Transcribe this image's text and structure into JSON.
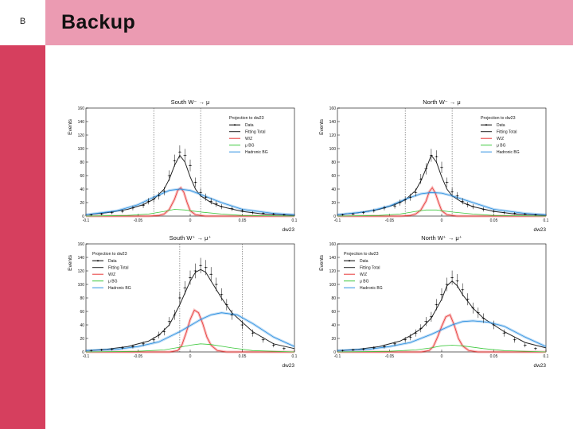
{
  "slide": {
    "letter": "B",
    "title": "Backup"
  },
  "colors": {
    "sidebar": "#d63f5e",
    "header": "#eb9bb2",
    "data": "#000000",
    "fitting_total": "#222222",
    "wz": "#e83838",
    "mu_bg": "#3cc83c",
    "hadronic_bg": "#2b8fe0"
  },
  "chart_data": [
    {
      "type": "line",
      "title": "South W⁻ → μ",
      "xlabel": "dw23",
      "ylabel": "Events",
      "xlim": [
        -0.1,
        0.1
      ],
      "ylim": [
        0,
        160
      ],
      "xticks": [
        "-0.1",
        "-0.05",
        "0",
        "0.05",
        "0.1"
      ],
      "yticks": [
        "0",
        "20",
        "40",
        "60",
        "80",
        "100",
        "120",
        "140",
        "160"
      ],
      "cut_lines": [
        -0.035,
        0.01
      ],
      "legend": {
        "position": "top-right",
        "title": "Projection to dw23",
        "entries": [
          "Data",
          "Fitting Total",
          "W/Z",
          "μ BG",
          "Hadronic BG"
        ]
      },
      "series": [
        {
          "name": "Data",
          "x": [
            -0.095,
            -0.085,
            -0.075,
            -0.065,
            -0.055,
            -0.045,
            -0.04,
            -0.035,
            -0.03,
            -0.025,
            -0.02,
            -0.015,
            -0.01,
            -0.005,
            0,
            0.005,
            0.01,
            0.015,
            0.02,
            0.025,
            0.03,
            0.04,
            0.05,
            0.06,
            0.07,
            0.08,
            0.09
          ],
          "y": [
            2,
            3,
            5,
            7,
            12,
            16,
            22,
            25,
            30,
            37,
            60,
            82,
            95,
            90,
            75,
            50,
            35,
            28,
            22,
            18,
            14,
            11,
            8,
            5,
            4,
            3,
            2
          ]
        },
        {
          "name": "Fitting Total",
          "x": [
            -0.1,
            -0.08,
            -0.06,
            -0.045,
            -0.035,
            -0.025,
            -0.02,
            -0.015,
            -0.01,
            -0.005,
            0,
            0.005,
            0.01,
            0.02,
            0.03,
            0.05,
            0.07,
            0.1
          ],
          "y": [
            2,
            5,
            10,
            17,
            25,
            40,
            55,
            75,
            90,
            80,
            58,
            40,
            30,
            20,
            14,
            7,
            3,
            1
          ]
        },
        {
          "name": "W/Z",
          "x": [
            -0.1,
            -0.04,
            -0.03,
            -0.025,
            -0.02,
            -0.015,
            -0.012,
            -0.009,
            -0.006,
            -0.003,
            0,
            0.005,
            0.015,
            0.1
          ],
          "y": [
            0,
            0,
            1,
            3,
            10,
            25,
            38,
            42,
            35,
            20,
            8,
            2,
            0,
            0
          ]
        },
        {
          "name": "μ BG",
          "x": [
            -0.1,
            -0.06,
            -0.04,
            -0.025,
            -0.015,
            -0.005,
            0.01,
            0.03,
            0.05,
            0.1
          ],
          "y": [
            0,
            1,
            3,
            7,
            10,
            9,
            6,
            3,
            1,
            0
          ]
        },
        {
          "name": "Hadronic BG",
          "x": [
            -0.1,
            -0.07,
            -0.05,
            -0.035,
            -0.02,
            -0.01,
            0,
            0.01,
            0.03,
            0.05,
            0.08,
            0.1
          ],
          "y": [
            2,
            8,
            17,
            28,
            38,
            40,
            38,
            32,
            20,
            10,
            4,
            2
          ]
        }
      ]
    },
    {
      "type": "line",
      "title": "North W⁻ → μ",
      "xlabel": "dw23",
      "ylabel": "Events",
      "xlim": [
        -0.1,
        0.1
      ],
      "ylim": [
        0,
        160
      ],
      "xticks": [
        "-0.1",
        "-0.05",
        "0",
        "0.05",
        "0.1"
      ],
      "yticks": [
        "0",
        "20",
        "40",
        "60",
        "80",
        "100",
        "120",
        "140",
        "160"
      ],
      "cut_lines": [
        -0.035,
        0.01
      ],
      "legend": {
        "position": "top-right",
        "title": "Projection to dw23",
        "entries": [
          "Data",
          "Fitting Total",
          "W/Z",
          "μ BG",
          "Hadronic BG"
        ]
      },
      "series": [
        {
          "name": "Data",
          "x": [
            -0.095,
            -0.085,
            -0.075,
            -0.065,
            -0.055,
            -0.045,
            -0.04,
            -0.035,
            -0.03,
            -0.025,
            -0.02,
            -0.015,
            -0.01,
            -0.005,
            0,
            0.005,
            0.01,
            0.015,
            0.02,
            0.025,
            0.03,
            0.04,
            0.05,
            0.06,
            0.07,
            0.08,
            0.09
          ],
          "y": [
            2,
            3,
            5,
            8,
            12,
            15,
            20,
            24,
            28,
            35,
            55,
            70,
            90,
            88,
            72,
            50,
            36,
            30,
            22,
            17,
            14,
            10,
            7,
            5,
            4,
            3,
            2
          ]
        },
        {
          "name": "Fitting Total",
          "x": [
            -0.1,
            -0.08,
            -0.06,
            -0.045,
            -0.035,
            -0.025,
            -0.02,
            -0.015,
            -0.01,
            -0.005,
            0,
            0.005,
            0.01,
            0.02,
            0.03,
            0.05,
            0.07,
            0.1
          ],
          "y": [
            2,
            5,
            10,
            17,
            24,
            38,
            52,
            70,
            90,
            80,
            58,
            40,
            30,
            20,
            14,
            7,
            3,
            1
          ]
        },
        {
          "name": "W/Z",
          "x": [
            -0.1,
            -0.04,
            -0.03,
            -0.025,
            -0.02,
            -0.015,
            -0.012,
            -0.009,
            -0.006,
            -0.003,
            0,
            0.005,
            0.015,
            0.1
          ],
          "y": [
            0,
            0,
            1,
            3,
            9,
            22,
            36,
            42,
            34,
            20,
            8,
            2,
            0,
            0
          ]
        },
        {
          "name": "μ BG",
          "x": [
            -0.1,
            -0.06,
            -0.04,
            -0.025,
            -0.015,
            -0.005,
            0.01,
            0.03,
            0.05,
            0.1
          ],
          "y": [
            0,
            1,
            3,
            7,
            9,
            9,
            6,
            3,
            1,
            0
          ]
        },
        {
          "name": "Hadronic BG",
          "x": [
            -0.1,
            -0.07,
            -0.05,
            -0.035,
            -0.02,
            -0.01,
            0,
            0.01,
            0.03,
            0.05,
            0.08,
            0.1
          ],
          "y": [
            2,
            7,
            15,
            25,
            33,
            35,
            34,
            30,
            20,
            10,
            4,
            2
          ]
        }
      ]
    },
    {
      "type": "line",
      "title": "South W⁺ → μ⁺",
      "xlabel": "dw23",
      "ylabel": "Events",
      "xlim": [
        -0.1,
        0.1
      ],
      "ylim": [
        0,
        160
      ],
      "xticks": [
        "-0.1",
        "-0.05",
        "0",
        "0.05",
        "0.1"
      ],
      "yticks": [
        "0",
        "20",
        "40",
        "60",
        "80",
        "100",
        "120",
        "140",
        "160"
      ],
      "cut_lines": [
        -0.01,
        0.05
      ],
      "legend": {
        "position": "top-left",
        "title": "Projection to dw23",
        "entries": [
          "Data",
          "Fitting Total",
          "W/Z",
          "μ BG",
          "Hadronic BG"
        ]
      },
      "series": [
        {
          "name": "Data",
          "x": [
            -0.095,
            -0.085,
            -0.075,
            -0.065,
            -0.055,
            -0.045,
            -0.035,
            -0.03,
            -0.025,
            -0.02,
            -0.015,
            -0.01,
            -0.005,
            0,
            0.005,
            0.01,
            0.015,
            0.02,
            0.025,
            0.03,
            0.035,
            0.04,
            0.05,
            0.06,
            0.07,
            0.08,
            0.09
          ],
          "y": [
            2,
            3,
            4,
            6,
            8,
            12,
            18,
            25,
            30,
            45,
            55,
            80,
            95,
            110,
            120,
            128,
            125,
            115,
            100,
            85,
            70,
            55,
            40,
            28,
            18,
            10,
            5
          ]
        },
        {
          "name": "Fitting Total",
          "x": [
            -0.1,
            -0.08,
            -0.06,
            -0.04,
            -0.03,
            -0.02,
            -0.01,
            0,
            0.005,
            0.01,
            0.015,
            0.02,
            0.03,
            0.04,
            0.06,
            0.08,
            0.1
          ],
          "y": [
            2,
            4,
            8,
            16,
            25,
            40,
            70,
            105,
            118,
            122,
            118,
            105,
            80,
            58,
            30,
            12,
            5
          ]
        },
        {
          "name": "W/Z",
          "x": [
            -0.1,
            -0.02,
            -0.012,
            -0.008,
            -0.004,
            0,
            0.004,
            0.008,
            0.012,
            0.016,
            0.02,
            0.026,
            0.035,
            0.1
          ],
          "y": [
            0,
            0,
            2,
            10,
            28,
            48,
            62,
            58,
            42,
            22,
            10,
            2,
            0,
            0
          ]
        },
        {
          "name": "μ BG",
          "x": [
            -0.1,
            -0.05,
            -0.025,
            -0.01,
            0,
            0.01,
            0.02,
            0.04,
            0.06,
            0.1
          ],
          "y": [
            0,
            1,
            3,
            7,
            10,
            12,
            11,
            6,
            2,
            0
          ]
        },
        {
          "name": "Hadronic BG",
          "x": [
            -0.1,
            -0.07,
            -0.05,
            -0.03,
            -0.01,
            0.01,
            0.02,
            0.03,
            0.045,
            0.06,
            0.08,
            0.1
          ],
          "y": [
            2,
            4,
            8,
            15,
            30,
            48,
            55,
            58,
            55,
            42,
            22,
            8
          ]
        }
      ]
    },
    {
      "type": "line",
      "title": "North W⁺ → μ⁺",
      "xlabel": "dw23",
      "ylabel": "Events",
      "xlim": [
        -0.1,
        0.1
      ],
      "ylim": [
        0,
        160
      ],
      "xticks": [
        "-0.1",
        "-0.05",
        "0",
        "0.05",
        "0.1"
      ],
      "yticks": [
        "0",
        "20",
        "40",
        "60",
        "80",
        "100",
        "120",
        "140",
        "160"
      ],
      "cut_lines": [],
      "legend": {
        "position": "top-left",
        "title": "Projection to dw23",
        "entries": [
          "Data",
          "Fitting Total",
          "W/Z",
          "μ BG",
          "Hadronic BG"
        ]
      },
      "series": [
        {
          "name": "Data",
          "x": [
            -0.095,
            -0.085,
            -0.075,
            -0.065,
            -0.055,
            -0.045,
            -0.035,
            -0.03,
            -0.025,
            -0.02,
            -0.015,
            -0.01,
            -0.005,
            0,
            0.005,
            0.01,
            0.015,
            0.02,
            0.025,
            0.03,
            0.035,
            0.04,
            0.05,
            0.06,
            0.07,
            0.08,
            0.09
          ],
          "y": [
            2,
            3,
            4,
            6,
            8,
            12,
            18,
            22,
            28,
            35,
            45,
            52,
            70,
            85,
            100,
            110,
            105,
            92,
            78,
            65,
            58,
            50,
            40,
            28,
            18,
            10,
            5
          ]
        },
        {
          "name": "Fitting Total",
          "x": [
            -0.1,
            -0.08,
            -0.06,
            -0.04,
            -0.03,
            -0.02,
            -0.01,
            0,
            0.005,
            0.01,
            0.015,
            0.02,
            0.03,
            0.04,
            0.06,
            0.08,
            0.1
          ],
          "y": [
            2,
            4,
            8,
            16,
            24,
            34,
            50,
            78,
            98,
            105,
            98,
            85,
            65,
            50,
            30,
            14,
            6
          ]
        },
        {
          "name": "W/Z",
          "x": [
            -0.1,
            -0.02,
            -0.012,
            -0.008,
            -0.004,
            0,
            0.004,
            0.008,
            0.012,
            0.016,
            0.02,
            0.026,
            0.035,
            0.1
          ],
          "y": [
            0,
            0,
            2,
            8,
            22,
            38,
            52,
            55,
            40,
            20,
            9,
            2,
            0,
            0
          ]
        },
        {
          "name": "μ BG",
          "x": [
            -0.1,
            -0.05,
            -0.025,
            -0.01,
            0,
            0.01,
            0.02,
            0.04,
            0.06,
            0.1
          ],
          "y": [
            0,
            1,
            3,
            6,
            9,
            10,
            9,
            5,
            2,
            0
          ]
        },
        {
          "name": "Hadronic BG",
          "x": [
            -0.1,
            -0.07,
            -0.05,
            -0.03,
            -0.01,
            0.01,
            0.02,
            0.03,
            0.045,
            0.06,
            0.08,
            0.1
          ],
          "y": [
            2,
            4,
            8,
            14,
            26,
            40,
            45,
            46,
            44,
            38,
            22,
            8
          ]
        }
      ]
    }
  ]
}
